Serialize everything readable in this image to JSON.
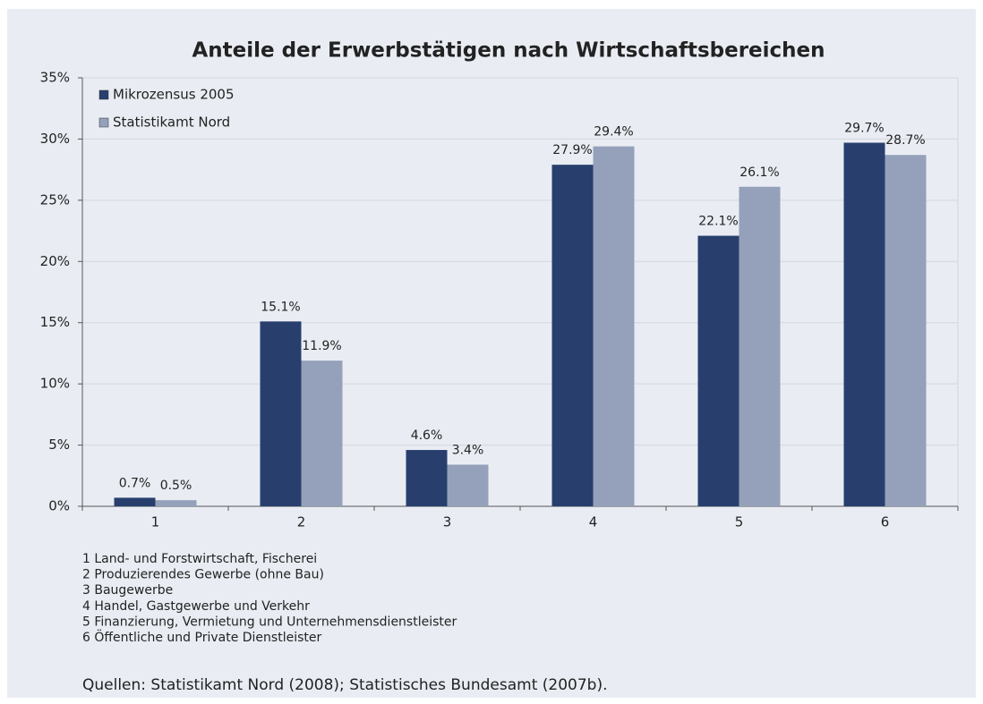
{
  "chart_data": {
    "type": "bar",
    "title": "Anteile der Erwerbstätigen nach Wirtschaftsbereichen",
    "categories": [
      "1",
      "2",
      "3",
      "4",
      "5",
      "6"
    ],
    "series": [
      {
        "name": "Mikrozensus 2005",
        "color": "#283f6e",
        "values": [
          0.7,
          15.1,
          4.6,
          27.9,
          22.1,
          29.7
        ],
        "value_labels": [
          "0.7%",
          "15.1%",
          "4.6%",
          "27.9%",
          "22.1%",
          "29.7%"
        ]
      },
      {
        "name": "Statistikamt Nord",
        "color": "#95a1ba",
        "values": [
          0.5,
          11.9,
          3.4,
          29.4,
          26.1,
          28.7
        ],
        "value_labels": [
          "0.5%",
          "11.9%",
          "3.4%",
          "29.4%",
          "26.1%",
          "28.7%"
        ]
      }
    ],
    "ylim": [
      0,
      35
    ],
    "yticks": [
      {
        "value": 0,
        "label": "0%"
      },
      {
        "value": 5,
        "label": "5%"
      },
      {
        "value": 10,
        "label": "10%"
      },
      {
        "value": 15,
        "label": "15%"
      },
      {
        "value": 20,
        "label": "20%"
      },
      {
        "value": 25,
        "label": "25%"
      },
      {
        "value": 30,
        "label": "30%"
      },
      {
        "value": 35,
        "label": "35%"
      }
    ],
    "grid": true,
    "legend": "top-left",
    "notes": [
      "1 Land- und Forstwirtschaft, Fischerei",
      "2 Produzierendes Gewerbe (ohne Bau)",
      "3 Baugewerbe",
      "4 Handel, Gastgewerbe und Verkehr",
      "5 Finanzierung, Vermietung und Unternehmensdienstleister",
      "6 Öffentliche und Private Dienstleister"
    ],
    "source": "Quellen: Statistikamt Nord (2008); Statistisches Bundesamt (2007b)."
  }
}
